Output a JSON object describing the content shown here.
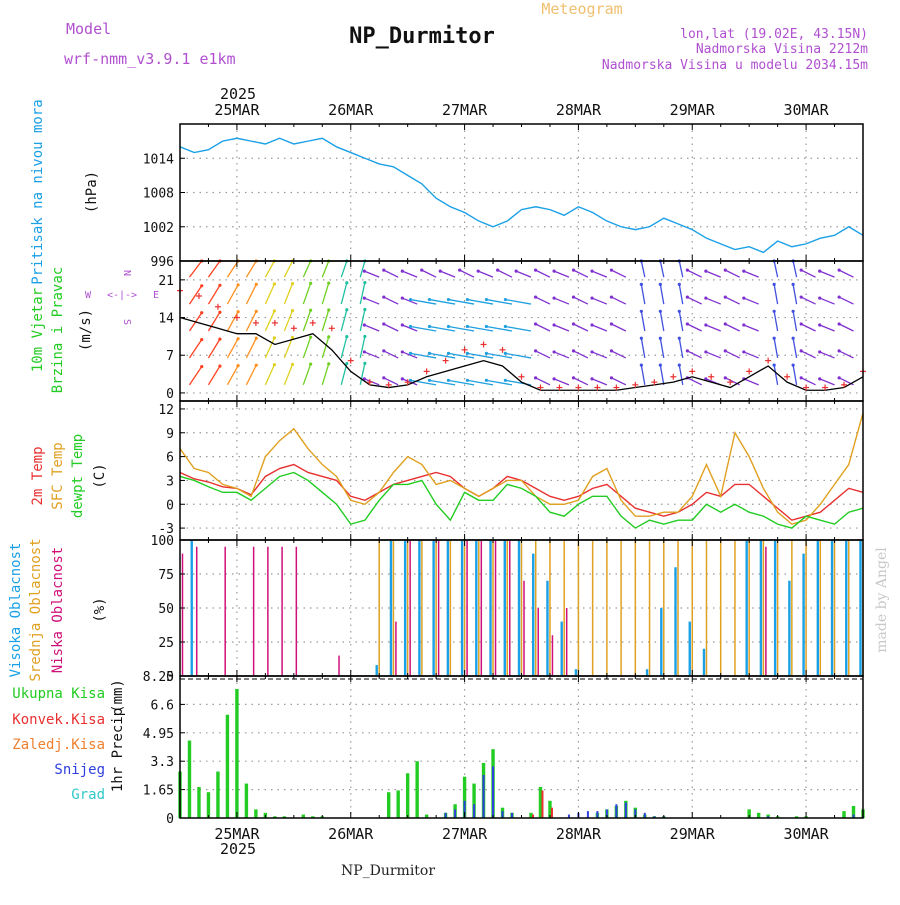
{
  "header": {
    "model_label": "Model",
    "model_name": "wrf-nmm_v3.9.1 e1km",
    "title": "NP_Durmitor",
    "meteogram_label": "Meteogram",
    "coords": "lon,lat (19.02E, 43.15N)",
    "elevation": "Nadmorska Visina 2212m",
    "model_elevation": "Nadmorska Visina u modelu 2034.15m",
    "footer_name": "NP_Durmitor",
    "watermark": "made by Angel"
  },
  "colors": {
    "pressure": "#1aa0e6",
    "wind_speed": "#000000",
    "wind_gust": "#e83030",
    "temp2m": "#e83030",
    "sfc_temp": "#e0a020",
    "dewpoint": "#22cc22",
    "high_cloud": "#1aa0e6",
    "mid_cloud": "#e0a020",
    "low_cloud": "#d0107a",
    "total_precip": "#22cc22",
    "conv_precip": "#e83030",
    "frozen_precip": "#f08030",
    "snow": "#3040e0",
    "graupel": "#30c8c8",
    "magenta_text": "#b050d0",
    "orange_text": "#f0c070"
  },
  "time_axis": {
    "year": "2025",
    "days": [
      "25MAR",
      "26MAR",
      "27MAR",
      "28MAR",
      "29MAR",
      "30MAR"
    ],
    "hours_total": 144
  },
  "wind_legend": {
    "n": "N",
    "w": "W",
    "e": "E",
    "s": "S",
    "arrow_label": "<-|->"
  },
  "chart_data": [
    {
      "type": "line",
      "panel": "pressure",
      "ylabel_a": "Pritisak na nivou mora",
      "ylabel_b": "(hPa)",
      "ylim": [
        996,
        1020
      ],
      "yticks": [
        "1014",
        "1008",
        "1002",
        "996"
      ],
      "x": [
        0,
        3,
        6,
        9,
        12,
        15,
        18,
        21,
        24,
        27,
        30,
        33,
        36,
        39,
        42,
        45,
        48,
        51,
        54,
        57,
        60,
        63,
        66,
        69,
        72,
        75,
        78,
        81,
        84,
        87,
        90,
        93,
        96,
        99,
        102,
        105,
        108,
        111,
        114,
        117,
        120,
        123,
        126,
        129,
        132,
        135,
        138,
        141,
        144
      ],
      "series": [
        {
          "name": "Pressure",
          "values": [
            1016.0,
            1015.0,
            1015.5,
            1017.0,
            1017.5,
            1017.0,
            1016.5,
            1017.5,
            1016.5,
            1017.0,
            1017.5,
            1016.0,
            1015.0,
            1014.0,
            1013.0,
            1012.5,
            1011.0,
            1009.5,
            1007.0,
            1005.5,
            1004.5,
            1003.0,
            1002.0,
            1003.0,
            1005.0,
            1005.5,
            1005.0,
            1004.0,
            1005.5,
            1004.5,
            1003.0,
            1002.0,
            1001.5,
            1002.0,
            1003.5,
            1002.5,
            1001.5,
            1000.0,
            999.0,
            998.0,
            998.5,
            997.5,
            999.5,
            998.5,
            999.0,
            1000.0,
            1000.5,
            1002.0,
            1000.5
          ]
        }
      ]
    },
    {
      "type": "line",
      "panel": "wind",
      "ylabel_a": "10m Vjetar",
      "ylabel_b": "Brzina i Pravac",
      "ylabel_c": "(m/s)",
      "ylim": [
        -1.5,
        24.5
      ],
      "yticks": [
        "21",
        "14",
        "7",
        "0"
      ],
      "x": [
        0,
        4,
        8,
        12,
        16,
        20,
        24,
        28,
        32,
        36,
        40,
        44,
        48,
        52,
        56,
        60,
        64,
        68,
        72,
        76,
        80,
        84,
        88,
        92,
        96,
        100,
        104,
        108,
        112,
        116,
        120,
        124,
        128,
        132,
        136,
        140,
        144
      ],
      "series": [
        {
          "name": "Speed",
          "values": [
            14.0,
            13.0,
            12.0,
            11.0,
            11.0,
            9.0,
            10.0,
            11.0,
            8.0,
            4.0,
            1.5,
            1.0,
            1.5,
            3.0,
            4.0,
            5.0,
            6.0,
            5.0,
            2.0,
            0.5,
            0.5,
            0.5,
            0.5,
            0.5,
            1.0,
            1.5,
            2.0,
            3.0,
            2.0,
            1.0,
            3.0,
            5.0,
            2.0,
            0.5,
            0.5,
            1.0,
            3.0
          ]
        },
        {
          "name": "Gust",
          "values": [
            19.0,
            18.0,
            16.0,
            14.0,
            13.0,
            13.0,
            12.0,
            13.0,
            12.0,
            6.0,
            2.0,
            1.5,
            2.0,
            4.0,
            6.0,
            8.0,
            9.0,
            8.0,
            3.0,
            1.0,
            1.0,
            1.0,
            1.0,
            1.0,
            1.5,
            2.0,
            3.0,
            4.0,
            3.0,
            2.0,
            4.0,
            6.0,
            3.0,
            1.0,
            1.0,
            1.5,
            4.0
          ]
        }
      ]
    },
    {
      "type": "line",
      "panel": "temperature",
      "ylabel_a": "2m Temp",
      "ylabel_b": "SFC Temp",
      "ylabel_c": "dewpt Temp",
      "ylabel_d": "(C)",
      "ylim": [
        -4.5,
        13
      ],
      "yticks": [
        "12",
        "9",
        "6",
        "3",
        "0",
        "-3"
      ],
      "x": [
        0,
        3,
        6,
        9,
        12,
        15,
        18,
        21,
        24,
        27,
        30,
        33,
        36,
        39,
        42,
        45,
        48,
        51,
        54,
        57,
        60,
        63,
        66,
        69,
        72,
        75,
        78,
        81,
        84,
        87,
        90,
        93,
        96,
        99,
        102,
        105,
        108,
        111,
        114,
        117,
        120,
        123,
        126,
        129,
        132,
        135,
        138,
        141,
        144
      ],
      "series": [
        {
          "name": "2m Temp",
          "values": [
            4.0,
            3.2,
            2.8,
            2.2,
            2.0,
            1.2,
            3.5,
            4.5,
            5.0,
            4.0,
            3.5,
            3.0,
            1.0,
            0.5,
            1.5,
            2.5,
            3.0,
            3.5,
            4.0,
            3.5,
            2.0,
            1.0,
            2.0,
            3.5,
            3.0,
            2.0,
            1.0,
            0.5,
            1.0,
            2.0,
            2.5,
            1.0,
            -0.5,
            -1.0,
            -1.5,
            -1.0,
            0.0,
            1.5,
            1.0,
            2.5,
            2.5,
            1.0,
            -0.5,
            -2.0,
            -1.5,
            -1.0,
            0.5,
            2.0,
            1.5
          ]
        },
        {
          "name": "SFC Temp",
          "values": [
            7.0,
            4.5,
            4.0,
            2.5,
            2.0,
            1.0,
            6.0,
            8.0,
            9.5,
            7.0,
            5.0,
            3.5,
            0.5,
            0.0,
            1.5,
            4.0,
            6.0,
            5.0,
            2.5,
            3.0,
            2.0,
            1.0,
            2.0,
            3.0,
            3.0,
            1.0,
            0.0,
            0.0,
            0.5,
            3.5,
            4.5,
            0.5,
            -1.5,
            -1.5,
            -1.0,
            -1.0,
            1.0,
            5.0,
            1.0,
            9.0,
            6.0,
            2.0,
            -1.0,
            -2.5,
            -2.0,
            0.0,
            2.5,
            5.0,
            11.5
          ]
        },
        {
          "name": "dewpt Temp",
          "values": [
            3.5,
            3.0,
            2.2,
            1.5,
            1.5,
            0.5,
            2.0,
            3.5,
            4.0,
            3.0,
            1.5,
            0.0,
            -2.5,
            -2.0,
            0.5,
            2.5,
            2.5,
            3.0,
            0.0,
            -2.0,
            1.5,
            0.5,
            0.5,
            2.5,
            2.0,
            1.0,
            -1.0,
            -1.5,
            0.0,
            1.0,
            1.0,
            -1.5,
            -3.0,
            -2.0,
            -2.5,
            -2.0,
            -2.0,
            0.0,
            -1.0,
            0.0,
            -1.0,
            -1.5,
            -2.5,
            -3.0,
            -1.5,
            -2.0,
            -2.5,
            -1.0,
            -0.5
          ]
        }
      ]
    },
    {
      "type": "bar",
      "panel": "clouds",
      "ylabel_a": "Visoka Oblacnost",
      "ylabel_b": "Srednja Oblacnost",
      "ylabel_c": "Niska Oblacnost",
      "ylabel_d": "(%)",
      "ylim": [
        0,
        100
      ],
      "yticks": [
        "100",
        "75",
        "50",
        "25",
        "0"
      ],
      "x": [
        0,
        3,
        6,
        9,
        12,
        15,
        18,
        21,
        24,
        27,
        30,
        33,
        36,
        39,
        42,
        45,
        48,
        51,
        54,
        57,
        60,
        63,
        66,
        69,
        72,
        75,
        78,
        81,
        84,
        87,
        90,
        93,
        96,
        99,
        102,
        105,
        108,
        111,
        114,
        117,
        120,
        123,
        126,
        129,
        132,
        135,
        138,
        141,
        144
      ],
      "series": [
        {
          "name": "Visoka Oblacnost",
          "values": [
            0,
            100,
            0,
            0,
            0,
            0,
            0,
            0,
            0,
            0,
            0,
            0,
            0,
            0,
            8,
            100,
            100,
            100,
            100,
            100,
            100,
            100,
            100,
            100,
            100,
            90,
            70,
            40,
            5,
            0,
            0,
            0,
            0,
            5,
            50,
            80,
            40,
            20,
            0,
            0,
            100,
            100,
            100,
            70,
            90,
            100,
            100,
            100,
            100
          ]
        },
        {
          "name": "Srednja Oblacnost",
          "values": [
            0,
            0,
            0,
            0,
            0,
            0,
            0,
            0,
            0,
            0,
            0,
            0,
            0,
            0,
            100,
            100,
            100,
            100,
            100,
            100,
            100,
            100,
            100,
            100,
            100,
            100,
            100,
            100,
            100,
            100,
            100,
            100,
            100,
            100,
            100,
            100,
            100,
            100,
            100,
            100,
            100,
            100,
            100,
            100,
            100,
            100,
            100,
            100,
            100
          ]
        },
        {
          "name": "Niska Oblacnost",
          "values": [
            90,
            95,
            0,
            95,
            0,
            95,
            95,
            95,
            95,
            0,
            0,
            15,
            0,
            0,
            0,
            40,
            100,
            0,
            100,
            0,
            100,
            100,
            100,
            100,
            70,
            50,
            30,
            50,
            0,
            0,
            0,
            0,
            0,
            0,
            0,
            0,
            0,
            0,
            0,
            0,
            0,
            95,
            0,
            0,
            0,
            0,
            0,
            0,
            0
          ]
        }
      ]
    },
    {
      "type": "bar",
      "panel": "precipitation",
      "ylabel_a": "1hr Precip",
      "ylabel_b": "(mm)",
      "ylim": [
        0,
        8.25
      ],
      "yticks": [
        "8.25",
        "6.6",
        "4.95",
        "3.3",
        "1.65",
        "0"
      ],
      "legend": [
        "Ukupna Kisa",
        "Konvek.Kisa",
        "Zaledj.Kisa",
        "Snijeg",
        "Grad"
      ],
      "x": [
        0,
        2,
        4,
        6,
        8,
        10,
        12,
        14,
        16,
        18,
        20,
        22,
        24,
        26,
        28,
        30,
        32,
        34,
        36,
        38,
        40,
        42,
        44,
        46,
        48,
        50,
        52,
        54,
        56,
        58,
        60,
        62,
        64,
        66,
        68,
        70,
        72,
        74,
        76,
        78,
        80,
        82,
        84,
        86,
        88,
        90,
        92,
        94,
        96,
        98,
        100,
        102,
        104,
        106,
        108,
        110,
        112,
        114,
        116,
        118,
        120,
        122,
        124,
        126,
        128,
        130,
        132,
        134,
        136,
        138,
        140,
        142,
        144
      ],
      "series": [
        {
          "name": "Ukupna Kisa",
          "values": [
            2.7,
            4.5,
            1.8,
            1.5,
            2.7,
            6.0,
            7.5,
            2.0,
            0.5,
            0.3,
            0.1,
            0.1,
            0.0,
            0.2,
            0.1,
            0.1,
            0.0,
            0.0,
            0.0,
            0.0,
            0.0,
            0.0,
            1.5,
            1.6,
            2.6,
            3.3,
            0.2,
            0.0,
            0.3,
            0.8,
            2.4,
            2.0,
            3.2,
            4.0,
            0.6,
            0.3,
            0.0,
            0.3,
            1.8,
            1.0,
            0.0,
            0.0,
            0.0,
            0.0,
            0.3,
            0.5,
            0.7,
            1.0,
            0.6,
            0.2,
            0.1,
            0.1,
            0.0,
            0.0,
            0.0,
            0.0,
            0.0,
            0.0,
            0.0,
            0.0,
            0.5,
            0.3,
            0.2,
            0.1,
            0.0,
            0.1,
            0.1,
            0.0,
            0.0,
            0.0,
            0.4,
            0.7,
            0.5
          ]
        },
        {
          "name": "Konvek.Kisa",
          "values": [
            0,
            0,
            0,
            0,
            0,
            0,
            0,
            0,
            0,
            0,
            0,
            0,
            0,
            0,
            0,
            0,
            0,
            0,
            0,
            0,
            0,
            0,
            0,
            0,
            0,
            0,
            0,
            0,
            0,
            0,
            0,
            0,
            0,
            0,
            0,
            0,
            0,
            0.2,
            1.6,
            0.6,
            0,
            0,
            0,
            0,
            0,
            0,
            0,
            0,
            0,
            0,
            0,
            0,
            0,
            0,
            0,
            0,
            0,
            0,
            0,
            0,
            0,
            0,
            0,
            0,
            0,
            0,
            0,
            0,
            0,
            0,
            0,
            0,
            0
          ]
        },
        {
          "name": "Snijeg",
          "values": [
            0,
            0,
            0,
            0,
            0,
            0,
            0,
            0,
            0,
            0,
            0,
            0,
            0,
            0,
            0,
            0,
            0,
            0,
            0,
            0,
            0,
            0,
            0,
            0,
            0,
            0,
            0,
            0,
            0.3,
            0.5,
            1.0,
            0.8,
            2.5,
            3.0,
            0.4,
            0.3,
            0,
            0,
            0,
            0,
            0,
            0.2,
            0.3,
            0.4,
            0.4,
            0.5,
            0.8,
            0.9,
            0.5,
            0.3,
            0.1,
            0.1,
            0,
            0,
            0,
            0,
            0,
            0,
            0,
            0,
            0,
            0,
            0.1,
            0,
            0,
            0,
            0,
            0,
            0,
            0,
            0,
            0.2,
            0.1
          ]
        }
      ]
    }
  ]
}
